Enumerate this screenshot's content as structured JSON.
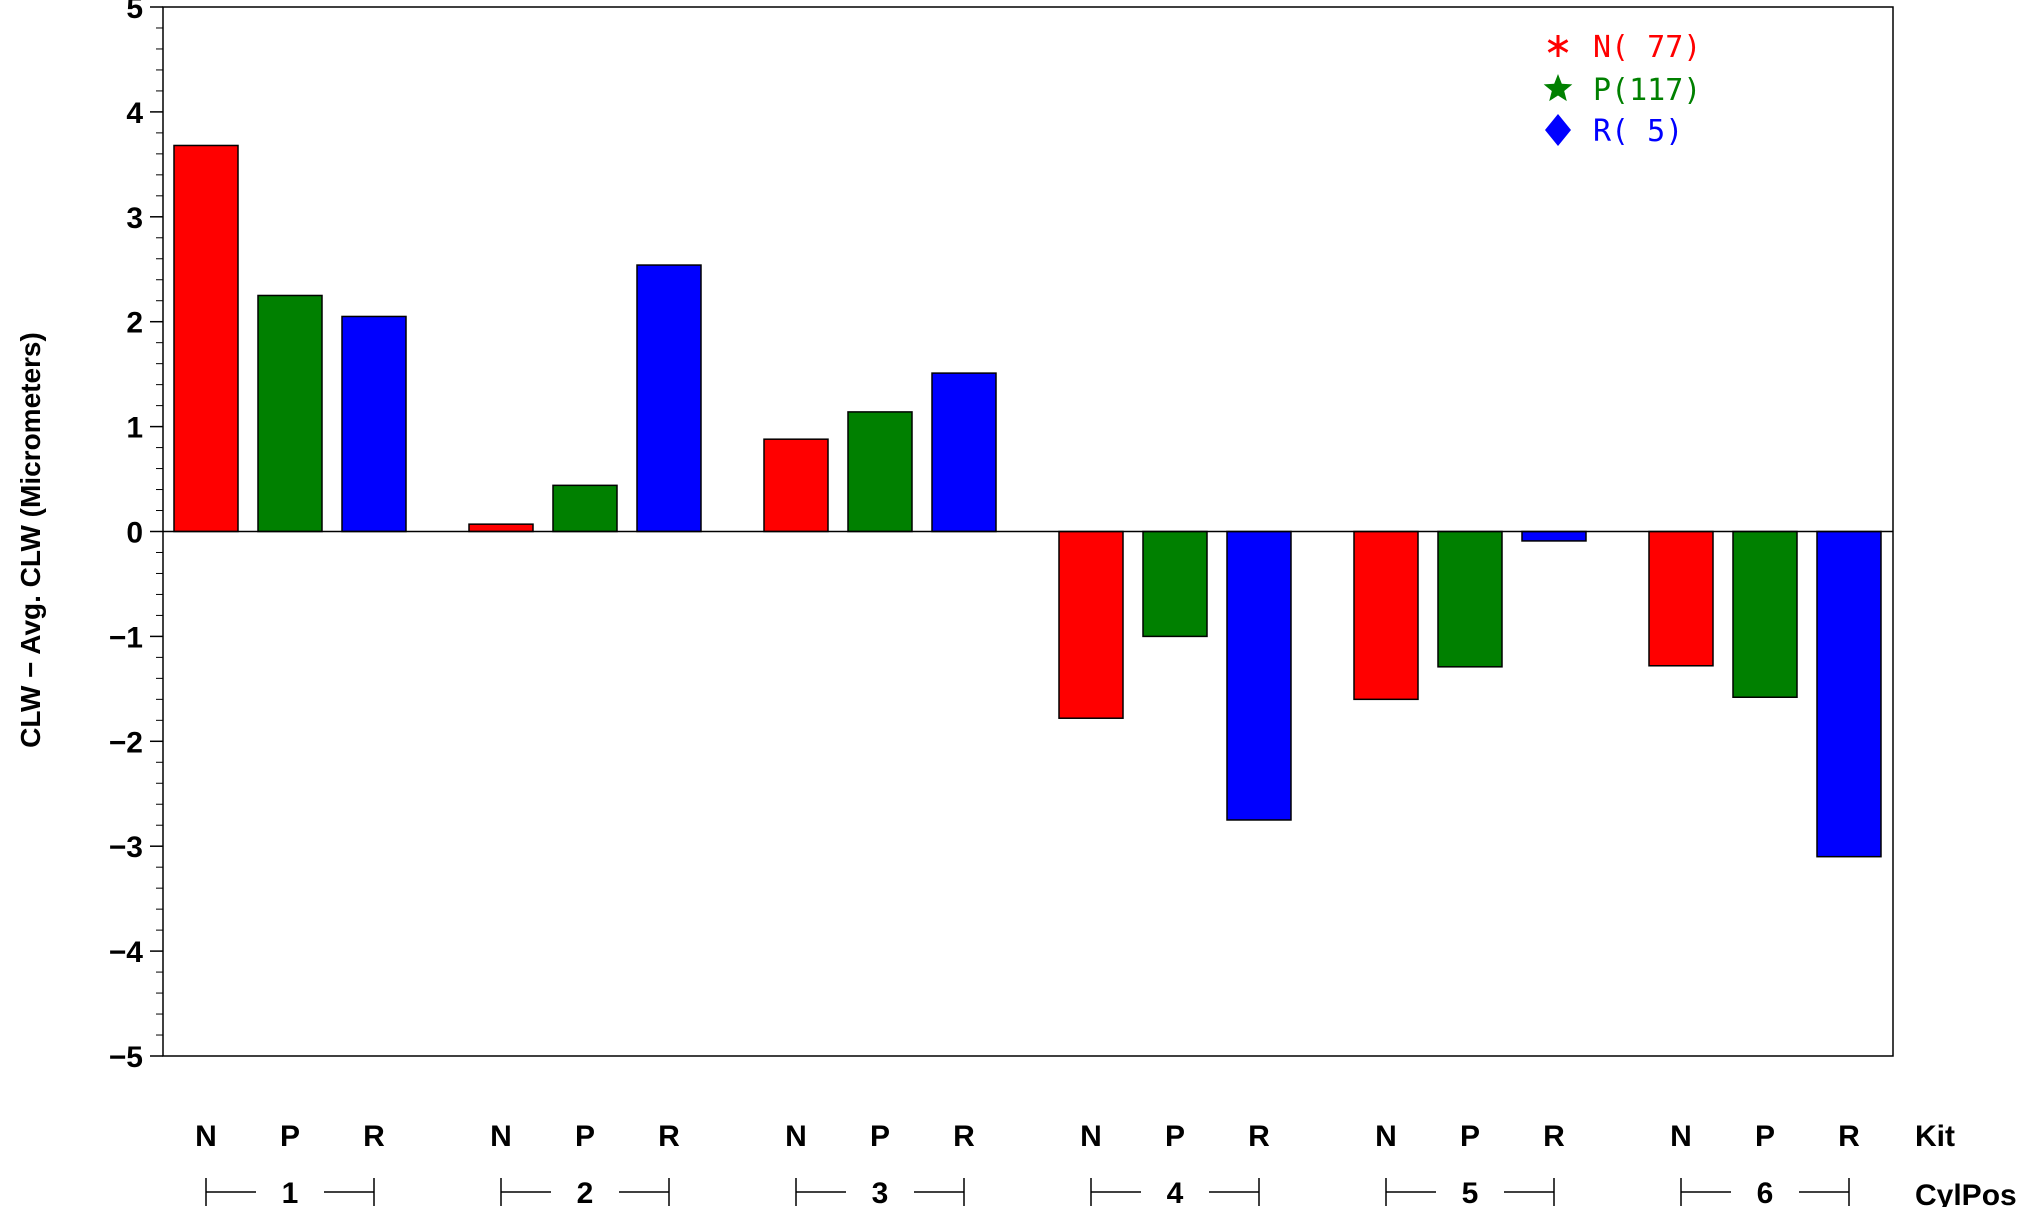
{
  "chart_data": {
    "type": "bar",
    "ylabel": "CLW  −  Avg. CLW  (Micrometers)",
    "ylim": [
      -5,
      5
    ],
    "y_ticks": [
      "−5",
      "−4",
      "−3",
      "−2",
      "−1",
      "0",
      "1",
      "2",
      "3",
      "4",
      "5"
    ],
    "y_tick_values": [
      -5,
      -4,
      -3,
      -2,
      -1,
      0,
      1,
      2,
      3,
      4,
      5
    ],
    "grid": false,
    "legend_position": "top-right",
    "group_axis_label": "CylPos",
    "subgroup_axis_label": "Kit",
    "groups": [
      "1",
      "2",
      "3",
      "4",
      "5",
      "6"
    ],
    "subgroups": [
      "N",
      "P",
      "R"
    ],
    "series": [
      {
        "name": "N",
        "legend_label": "N( 77)",
        "color": "#ff0000",
        "marker": "*",
        "marker_icon": "asterisk-icon",
        "values": [
          3.68,
          0.07,
          0.88,
          -1.78,
          -1.6,
          -1.28
        ]
      },
      {
        "name": "P",
        "legend_label": "P(117)",
        "color": "#008000",
        "marker": "★",
        "marker_icon": "star-icon",
        "values": [
          2.25,
          0.44,
          1.14,
          -1.0,
          -1.29,
          -1.58
        ]
      },
      {
        "name": "R",
        "legend_label": "R( 5)",
        "color": "#0000ff",
        "marker": "◆",
        "marker_icon": "diamond-icon",
        "values": [
          2.05,
          2.54,
          1.51,
          -2.75,
          -0.09,
          -3.1
        ]
      }
    ]
  }
}
